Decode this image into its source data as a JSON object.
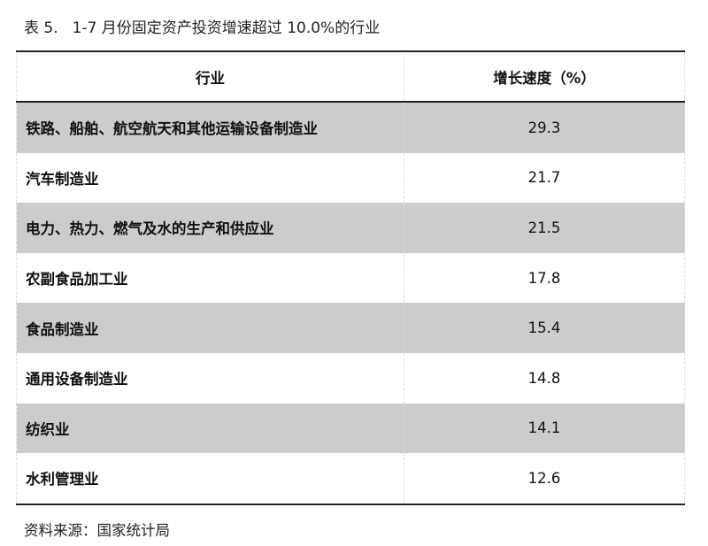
{
  "title": {
    "label": "表 5.",
    "text": "1-7 月份固定资产投资增速超过 10.0%的行业"
  },
  "table": {
    "headers": [
      "行业",
      "增长速度（%）"
    ],
    "rows": [
      {
        "industry": "铁路、船舶、航空航天和其他运输设备制造业",
        "growth": "29.3"
      },
      {
        "industry": "汽车制造业",
        "growth": "21.7"
      },
      {
        "industry": "电力、热力、燃气及水的生产和供应业",
        "growth": "21.5"
      },
      {
        "industry": "农副食品加工业",
        "growth": "17.8"
      },
      {
        "industry": "食品制造业",
        "growth": "15.4"
      },
      {
        "industry": "通用设备制造业",
        "growth": "14.8"
      },
      {
        "industry": "纺织业",
        "growth": "14.1"
      },
      {
        "industry": "水利管理业",
        "growth": "12.6"
      }
    ]
  },
  "source": "资料来源：国家统计局",
  "colors": {
    "shaded_row": "#cccccc",
    "rule": "#222222"
  }
}
